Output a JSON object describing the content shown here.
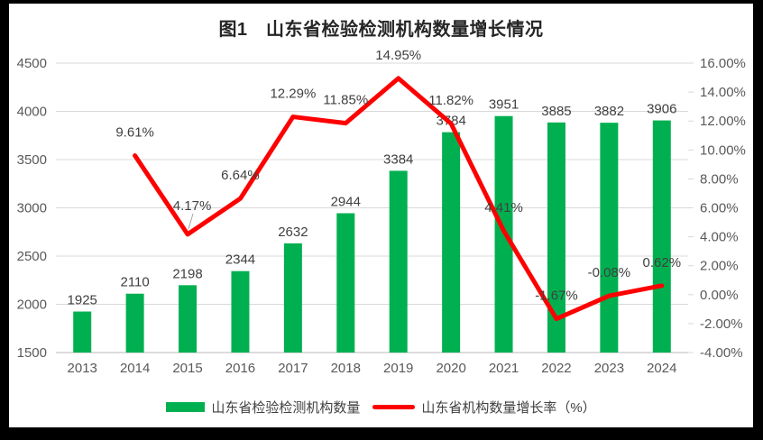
{
  "window": {
    "frame_color": "#000000",
    "panel_color": "#ffffff"
  },
  "title": "图1　山东省检验检测机构数量增长情况",
  "legend": {
    "items": [
      {
        "label": "山东省检验检测机构数量",
        "swatch": "bar",
        "color": "#00B050"
      },
      {
        "label": "山东省机构数量增长率（%）",
        "swatch": "line",
        "color": "#FF0000"
      }
    ]
  },
  "chart_data": {
    "type": "combo",
    "title": "图1　山东省检验检测机构数量增长情况",
    "categories": [
      "2013",
      "2014",
      "2015",
      "2016",
      "2017",
      "2018",
      "2019",
      "2020",
      "2021",
      "2022",
      "2023",
      "2024"
    ],
    "series": [
      {
        "name": "山东省检验检测机构数量",
        "type": "bar",
        "axis": "left",
        "color": "#00B050",
        "values": [
          1925,
          2110,
          2198,
          2344,
          2632,
          2944,
          3384,
          3784,
          3951,
          3885,
          3882,
          3906
        ],
        "data_labels": [
          "1925",
          "2110",
          "2198",
          "2344",
          "2632",
          "2944",
          "3384",
          "3784",
          "3951",
          "3885",
          "3882",
          "3906"
        ]
      },
      {
        "name": "山东省机构数量增长率（%）",
        "type": "line",
        "axis": "right",
        "color": "#FF0000",
        "values": [
          null,
          9.61,
          4.17,
          6.64,
          12.29,
          11.85,
          14.95,
          11.82,
          4.41,
          -1.67,
          -0.08,
          0.62
        ],
        "data_labels": [
          null,
          "9.61%",
          "4.17%",
          "6.64%",
          "12.29%",
          "11.85%",
          "14.95%",
          "11.82%",
          "4.41%",
          "-1.67%",
          "-0.08%",
          "0.62%"
        ]
      }
    ],
    "left_axis": {
      "min": 1500,
      "max": 4500,
      "step": 500,
      "tick_labels": [
        "4500",
        "4000",
        "3500",
        "3000",
        "2500",
        "2000",
        "1500"
      ]
    },
    "right_axis": {
      "min": -4,
      "max": 16,
      "step": 2,
      "tick_labels": [
        "16.00%",
        "14.00%",
        "12.00%",
        "10.00%",
        "8.00%",
        "6.00%",
        "4.00%",
        "2.00%",
        "0.00%",
        "-2.00%",
        "-4.00%"
      ]
    },
    "grid": {
      "horizontal": true,
      "vertical": false,
      "color": "#D9D9D9"
    },
    "axis_line_color": "#C6C6C6",
    "text_colors": {
      "axis": "#595959",
      "data_labels": "#404040"
    },
    "legend_position": "bottom"
  }
}
